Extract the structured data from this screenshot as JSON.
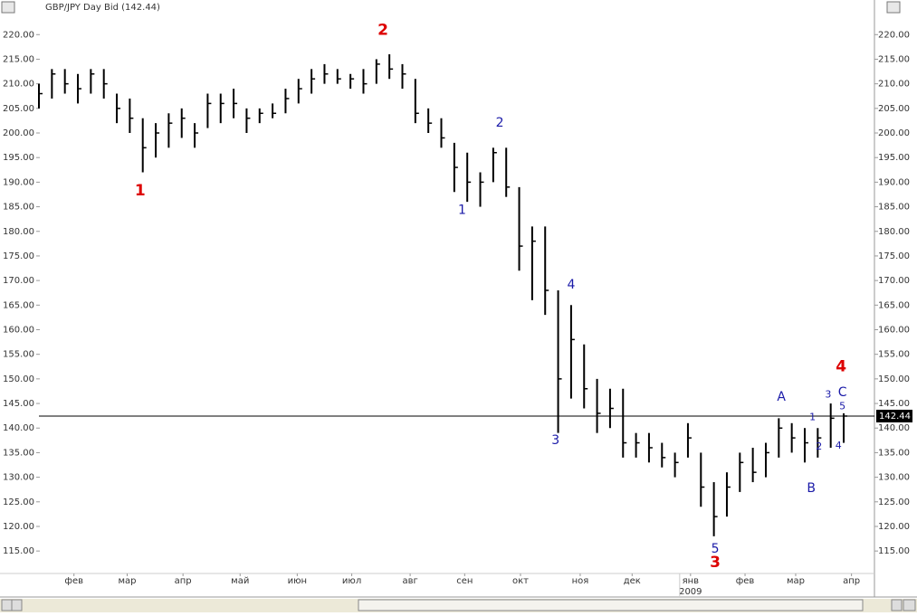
{
  "chart_data": {
    "type": "ohlc",
    "title": "GBP/JPY Day Bid (142.44)",
    "color": "#000000",
    "x": [
      0,
      1,
      2,
      3,
      4,
      5,
      6,
      7,
      8,
      9,
      10,
      11,
      12,
      13,
      14,
      15,
      16,
      17,
      18,
      19,
      20,
      21,
      22,
      23,
      24,
      25,
      26,
      27,
      28,
      29,
      30,
      31,
      32,
      33,
      34,
      35,
      36,
      37,
      38,
      39,
      40,
      41,
      42,
      43,
      44,
      45,
      46,
      47,
      48,
      49,
      50,
      51,
      52,
      53,
      54,
      55,
      56,
      57,
      58,
      59,
      60,
      61,
      62
    ],
    "high": [
      210,
      213,
      213,
      212,
      213,
      213,
      208,
      207,
      203,
      202,
      204,
      205,
      202,
      208,
      208,
      209,
      205,
      205,
      206,
      209,
      211,
      213,
      214,
      213,
      212,
      213,
      215,
      216,
      214,
      211,
      205,
      203,
      198,
      196,
      192,
      197,
      197,
      189,
      181,
      181,
      168,
      165,
      157,
      150,
      148,
      148,
      139,
      139,
      137,
      135,
      141,
      135,
      129,
      131,
      135,
      136,
      137,
      142,
      141,
      140,
      140,
      145,
      143
    ],
    "low": [
      205,
      207,
      208,
      206,
      208,
      207,
      202,
      200,
      192,
      195,
      197,
      199,
      197,
      201,
      202,
      203,
      200,
      202,
      203,
      204,
      206,
      208,
      210,
      210,
      209,
      208,
      210,
      211,
      209,
      202,
      200,
      197,
      188,
      186,
      185,
      190,
      187,
      172,
      166,
      163,
      139,
      146,
      144,
      139,
      140,
      134,
      134,
      133,
      132,
      130,
      134,
      124,
      118,
      122,
      127,
      129,
      130,
      134,
      135,
      133,
      134,
      136,
      137
    ],
    "close": [
      208,
      212,
      210,
      209,
      212,
      210,
      205,
      203,
      197,
      200,
      202,
      203,
      200,
      206,
      206,
      206,
      203,
      204,
      204,
      207,
      209,
      211,
      212,
      211,
      211,
      210,
      214,
      213,
      212,
      204,
      202,
      199,
      193,
      190,
      190,
      196,
      189,
      177,
      178,
      168,
      150,
      158,
      148,
      143,
      144,
      137,
      137,
      136,
      134,
      133,
      138,
      128,
      122,
      128,
      133,
      131,
      135,
      140,
      138,
      137,
      138,
      142,
      142.44
    ],
    "xlim": [
      0,
      64.3
    ],
    "ylim": [
      110.8,
      225.2
    ],
    "yticks": [
      {
        "value": 220,
        "label": "220.00"
      },
      {
        "value": 215,
        "label": "215.00"
      },
      {
        "value": 210,
        "label": "210.00"
      },
      {
        "value": 205,
        "label": "205.00"
      },
      {
        "value": 200,
        "label": "200.00"
      },
      {
        "value": 195,
        "label": "195.00"
      },
      {
        "value": 190,
        "label": "190.00"
      },
      {
        "value": 185,
        "label": "185.00"
      },
      {
        "value": 180,
        "label": "180.00"
      },
      {
        "value": 175,
        "label": "175.00"
      },
      {
        "value": 170,
        "label": "170.00"
      },
      {
        "value": 165,
        "label": "165.00"
      },
      {
        "value": 160,
        "label": "160.00"
      },
      {
        "value": 155,
        "label": "155.00"
      },
      {
        "value": 150,
        "label": "150.00"
      },
      {
        "value": 145,
        "label": "145.00"
      },
      {
        "value": 140,
        "label": "140.00"
      },
      {
        "value": 135,
        "label": "135.00"
      },
      {
        "value": 130,
        "label": "130.00"
      },
      {
        "value": 125,
        "label": "125.00"
      },
      {
        "value": 120,
        "label": "120.00"
      },
      {
        "value": 115,
        "label": "115.00"
      }
    ],
    "xticks": [
      {
        "value": 2.7,
        "label": "фев"
      },
      {
        "value": 6.8,
        "label": "мар"
      },
      {
        "value": 11.1,
        "label": "апр"
      },
      {
        "value": 15.5,
        "label": "май"
      },
      {
        "value": 19.9,
        "label": "июн"
      },
      {
        "value": 24.1,
        "label": "июл"
      },
      {
        "value": 28.6,
        "label": "авг"
      },
      {
        "value": 32.8,
        "label": "сен"
      },
      {
        "value": 37.1,
        "label": "окт"
      },
      {
        "value": 41.7,
        "label": "ноя"
      },
      {
        "value": 45.7,
        "label": "дек"
      },
      {
        "value": 50.2,
        "label": "янв"
      },
      {
        "value": 54.4,
        "label": "фев"
      },
      {
        "value": 58.3,
        "label": "мар"
      },
      {
        "value": 62.6,
        "label": "апр"
      }
    ],
    "year_label": {
      "value": 50.2,
      "label": "2009"
    },
    "last_price": 142.44,
    "annotations": [
      {
        "text": "2",
        "x": 26.5,
        "y": 220.9,
        "color": "#dd0000",
        "size": "big"
      },
      {
        "text": "1",
        "x": 7.8,
        "y": 188.2,
        "color": "#dd0000",
        "size": "big"
      },
      {
        "text": "1",
        "x": 32.6,
        "y": 184.3,
        "color": "#1a1aa8",
        "size": "mid"
      },
      {
        "text": "2",
        "x": 35.5,
        "y": 202,
        "color": "#1a1aa8",
        "size": "mid"
      },
      {
        "text": "3",
        "x": 39.8,
        "y": 137.5,
        "color": "#1a1aa8",
        "size": "mid"
      },
      {
        "text": "4",
        "x": 41,
        "y": 169.1,
        "color": "#1a1aa8",
        "size": "mid"
      },
      {
        "text": "5",
        "x": 52.1,
        "y": 115.4,
        "color": "#1a1aa8",
        "size": "mid"
      },
      {
        "text": "3",
        "x": 52.1,
        "y": 112.6,
        "color": "#dd0000",
        "size": "big"
      },
      {
        "text": "A",
        "x": 57.2,
        "y": 146.3,
        "color": "#1a1aa8",
        "size": "mid"
      },
      {
        "text": "B",
        "x": 59.5,
        "y": 127.7,
        "color": "#1a1aa8",
        "size": "mid"
      },
      {
        "text": "C",
        "x": 61.9,
        "y": 147.2,
        "color": "#1a1aa8",
        "size": "mid"
      },
      {
        "text": "4",
        "x": 61.8,
        "y": 152.5,
        "color": "#dd0000",
        "size": "big"
      },
      {
        "text": "1",
        "x": 59.6,
        "y": 142.2,
        "color": "#1a1aa8",
        "size": "small"
      },
      {
        "text": "2",
        "x": 60.1,
        "y": 136.2,
        "color": "#1a1aa8",
        "size": "small"
      },
      {
        "text": "3",
        "x": 60.8,
        "y": 146.8,
        "color": "#1a1aa8",
        "size": "small"
      },
      {
        "text": "4",
        "x": 61.6,
        "y": 136.4,
        "color": "#1a1aa8",
        "size": "small"
      },
      {
        "text": "5",
        "x": 61.9,
        "y": 144.4,
        "color": "#1a1aa8",
        "size": "small"
      }
    ]
  }
}
